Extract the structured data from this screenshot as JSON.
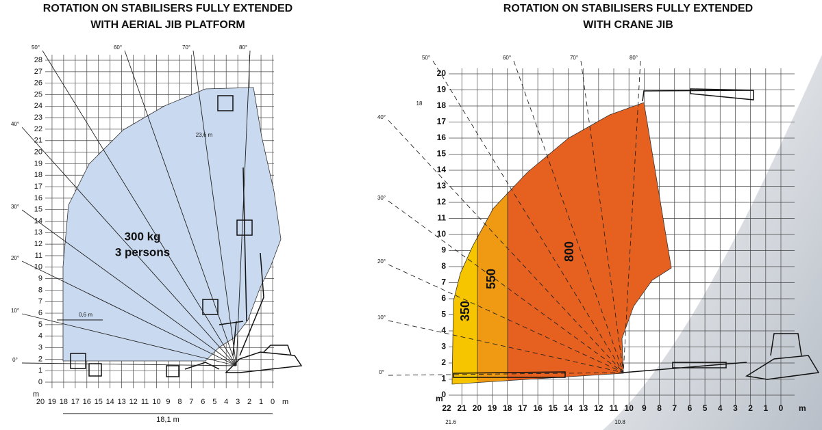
{
  "left": {
    "title": [
      "ROTATION ON STABILISERS FULLY EXTENDED",
      "WITH AERIAL JIB PLATFORM"
    ],
    "y_ticks": [
      0,
      1,
      2,
      3,
      4,
      5,
      6,
      7,
      8,
      9,
      10,
      11,
      12,
      13,
      14,
      15,
      16,
      17,
      18,
      19,
      20,
      21,
      22,
      23,
      24,
      25,
      26,
      27,
      28
    ],
    "x_ticks": [
      20,
      19,
      18,
      17,
      16,
      15,
      14,
      13,
      12,
      11,
      10,
      9,
      8,
      7,
      6,
      5,
      4,
      3,
      2,
      1,
      0
    ],
    "y_unit": "m",
    "x_unit": "m",
    "angles": [
      "0°",
      "10°",
      "20°",
      "30°",
      "40°",
      "50°",
      "60°",
      "70°",
      "80°"
    ],
    "load": "300 kg",
    "persons": "3 persons",
    "height": "23,6 m",
    "offset": "0,6 m",
    "reach": "18,1 m"
  },
  "right": {
    "title": [
      "ROTATION ON STABILISERS FULLY EXTENDED",
      "WITH CRANE JIB"
    ],
    "y_ticks": [
      0,
      1,
      2,
      3,
      4,
      5,
      6,
      7,
      8,
      9,
      10,
      11,
      12,
      13,
      14,
      15,
      16,
      17,
      18,
      19,
      20
    ],
    "x_ticks": [
      22,
      21,
      20,
      19,
      18,
      17,
      16,
      15,
      14,
      13,
      12,
      11,
      10,
      9,
      8,
      7,
      6,
      5,
      4,
      3,
      2,
      1,
      0
    ],
    "y_unit": "m",
    "x_unit": "m",
    "angles": [
      "0°",
      "10°",
      "20°",
      "30°",
      "40°",
      "50°",
      "60°",
      "70°",
      "80°"
    ],
    "zones": [
      "350",
      "550",
      "800"
    ],
    "marks": [
      "18",
      "21.6",
      "10.8"
    ]
  }
}
